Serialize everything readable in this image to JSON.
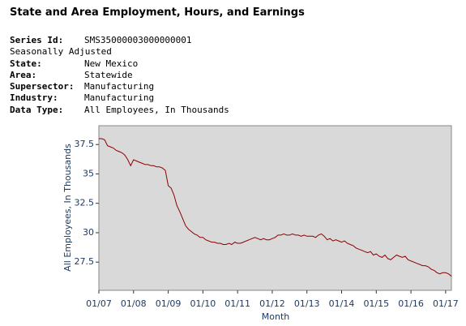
{
  "header": {
    "title": "State and Area Employment, Hours, and Earnings"
  },
  "meta": [
    {
      "key": "Series Id:",
      "value": "SMS35000003000000001"
    },
    {
      "key": "Seasonally Adjusted"
    },
    {
      "key": "State:",
      "value": "New Mexico"
    },
    {
      "key": "Area:",
      "value": "Statewide"
    },
    {
      "key": "Supersector:",
      "value": "Manufacturing"
    },
    {
      "key": "Industry:",
      "value": "Manufacturing"
    },
    {
      "key": "Data Type:",
      "value": "All Employees, In Thousands"
    }
  ],
  "chart_data": {
    "type": "line",
    "xlabel": "Month",
    "ylabel": "All Employees, In Thousands",
    "xstart": "2007-01",
    "xlim": [
      "2007-01",
      "2017-03"
    ],
    "xticks": [
      {
        "value": "2007-01",
        "label": "01/07"
      },
      {
        "value": "2008-01",
        "label": "01/08"
      },
      {
        "value": "2009-01",
        "label": "01/09"
      },
      {
        "value": "2010-01",
        "label": "01/10"
      },
      {
        "value": "2011-01",
        "label": "01/11"
      },
      {
        "value": "2012-01",
        "label": "01/12"
      },
      {
        "value": "2013-01",
        "label": "01/13"
      },
      {
        "value": "2014-01",
        "label": "01/14"
      },
      {
        "value": "2015-01",
        "label": "01/15"
      },
      {
        "value": "2016-01",
        "label": "01/16"
      },
      {
        "value": "2017-01",
        "label": "01/17"
      }
    ],
    "ylim": [
      25.1,
      39.1
    ],
    "yticks": [
      27.5,
      30,
      32.5,
      35,
      37.5
    ],
    "series": [
      {
        "color": "#8b0000",
        "values": [
          38.0,
          38.0,
          37.9,
          37.4,
          37.3,
          37.2,
          37.0,
          36.9,
          36.8,
          36.6,
          36.2,
          35.7,
          36.2,
          36.1,
          36.0,
          35.9,
          35.8,
          35.8,
          35.7,
          35.7,
          35.6,
          35.6,
          35.5,
          35.3,
          34.0,
          33.8,
          33.2,
          32.3,
          31.8,
          31.2,
          30.6,
          30.3,
          30.1,
          29.9,
          29.8,
          29.6,
          29.6,
          29.4,
          29.3,
          29.2,
          29.2,
          29.1,
          29.1,
          29.0,
          29.0,
          29.1,
          29.0,
          29.2,
          29.1,
          29.1,
          29.2,
          29.3,
          29.4,
          29.5,
          29.6,
          29.5,
          29.4,
          29.5,
          29.4,
          29.4,
          29.5,
          29.6,
          29.8,
          29.8,
          29.9,
          29.8,
          29.8,
          29.9,
          29.8,
          29.8,
          29.7,
          29.8,
          29.7,
          29.7,
          29.7,
          29.6,
          29.8,
          29.9,
          29.7,
          29.4,
          29.5,
          29.3,
          29.4,
          29.3,
          29.2,
          29.3,
          29.1,
          29.0,
          28.9,
          28.7,
          28.6,
          28.5,
          28.4,
          28.3,
          28.4,
          28.1,
          28.2,
          28.0,
          27.9,
          28.1,
          27.8,
          27.7,
          27.9,
          28.1,
          28.0,
          27.9,
          28.0,
          27.7,
          27.6,
          27.5,
          27.4,
          27.3,
          27.2,
          27.2,
          27.1,
          26.9,
          26.8,
          26.6,
          26.5,
          26.6,
          26.6,
          26.5,
          26.3
        ]
      }
    ]
  }
}
